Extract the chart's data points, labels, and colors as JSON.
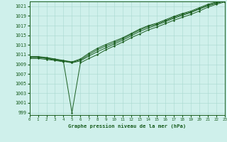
{
  "title": "Graphe pression niveau de la mer (hPa)",
  "bg_color": "#cff0eb",
  "grid_color": "#a8d8d0",
  "line_color": "#1a5e20",
  "xlim": [
    0,
    23
  ],
  "ylim": [
    998.5,
    1022.0
  ],
  "xticks": [
    0,
    1,
    2,
    3,
    4,
    5,
    6,
    7,
    8,
    9,
    10,
    11,
    12,
    13,
    14,
    15,
    16,
    17,
    18,
    19,
    20,
    21,
    22,
    23
  ],
  "yticks": [
    999,
    1001,
    1003,
    1005,
    1007,
    1009,
    1011,
    1013,
    1015,
    1017,
    1019,
    1021
  ],
  "series": [
    [
      1010.2,
      1010.2,
      1010.0,
      1009.8,
      1009.5,
      999.0,
      1009.3,
      1010.2,
      1011.0,
      1012.0,
      1012.8,
      1013.6,
      1014.5,
      1015.3,
      1016.1,
      1016.7,
      1017.4,
      1018.1,
      1018.7,
      1019.3,
      1020.0,
      1020.8,
      1021.4,
      1021.9
    ],
    [
      1010.4,
      1010.4,
      1010.2,
      1009.9,
      1009.6,
      1009.3,
      1009.7,
      1010.7,
      1011.6,
      1012.4,
      1013.2,
      1014.0,
      1014.9,
      1015.8,
      1016.5,
      1017.1,
      1017.8,
      1018.5,
      1019.1,
      1019.7,
      1020.4,
      1021.1,
      1021.6,
      1022.1
    ],
    [
      1010.5,
      1010.5,
      1010.3,
      1010.0,
      1009.7,
      1009.4,
      1009.9,
      1011.0,
      1012.0,
      1012.8,
      1013.5,
      1014.3,
      1015.2,
      1016.1,
      1016.8,
      1017.3,
      1018.0,
      1018.7,
      1019.3,
      1019.8,
      1020.5,
      1021.2,
      1021.7,
      1022.2
    ],
    [
      1010.6,
      1010.6,
      1010.4,
      1010.1,
      1009.8,
      1009.5,
      1010.1,
      1011.3,
      1012.3,
      1013.1,
      1013.8,
      1014.5,
      1015.4,
      1016.3,
      1017.0,
      1017.5,
      1018.2,
      1018.9,
      1019.5,
      1020.0,
      1020.7,
      1021.4,
      1021.9,
      1022.3
    ]
  ]
}
